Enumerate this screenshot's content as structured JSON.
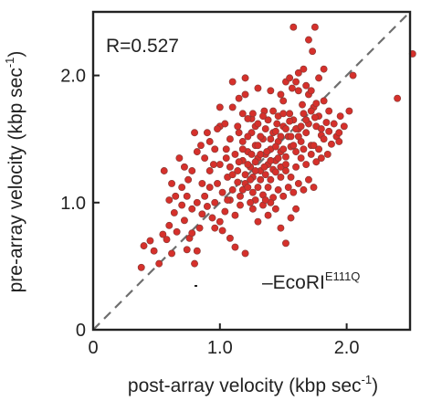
{
  "chart_data": {
    "type": "scatter",
    "xlabel": "post-array velocity (kbp sec",
    "xlabel_sup": "-1",
    "xlabel_tail": ")",
    "ylabel": "pre-array velocity (kbp sec",
    "ylabel_sup": "-1",
    "ylabel_tail": ")",
    "xlim": [
      0,
      2.5
    ],
    "ylim": [
      0,
      2.5
    ],
    "x_ticks": [
      {
        "value": 0,
        "label": "0"
      },
      {
        "value": 1.0,
        "label": "1.0"
      },
      {
        "value": 2.0,
        "label": "2.0"
      }
    ],
    "y_ticks": [
      {
        "value": 0,
        "label": "0"
      },
      {
        "value": 1.0,
        "label": "1.0"
      },
      {
        "value": 2.0,
        "label": "2.0"
      }
    ],
    "annotation_r": "R=0.527",
    "legend_text": "–EcoRI",
    "legend_sup": "E111Q",
    "diagonal_line": {
      "from": [
        0,
        0
      ],
      "to": [
        2.5,
        2.5
      ],
      "style": "dashed"
    },
    "colors": {
      "point_fill": "#d6302b",
      "point_stroke": "#8a3a36",
      "axis": "#222222",
      "diagonal": "#6e6e6e"
    },
    "points": [
      [
        0.38,
        0.49
      ],
      [
        0.4,
        0.66
      ],
      [
        0.45,
        0.7
      ],
      [
        0.48,
        0.62
      ],
      [
        0.52,
        0.52
      ],
      [
        0.55,
        0.75
      ],
      [
        0.58,
        0.71
      ],
      [
        0.6,
        0.82
      ],
      [
        0.62,
        0.6
      ],
      [
        0.64,
        0.92
      ],
      [
        0.66,
        0.77
      ],
      [
        0.7,
        0.98
      ],
      [
        0.72,
        0.86
      ],
      [
        0.74,
        0.63
      ],
      [
        0.76,
        0.72
      ],
      [
        0.78,
        0.76
      ],
      [
        0.8,
        0.52
      ],
      [
        0.82,
        0.62
      ],
      [
        0.84,
        0.8
      ],
      [
        0.86,
        0.91
      ],
      [
        0.88,
        1.05
      ],
      [
        0.9,
        0.97
      ],
      [
        0.92,
        1.12
      ],
      [
        0.94,
        0.88
      ],
      [
        0.96,
        1.0
      ],
      [
        0.98,
        1.15
      ],
      [
        1.0,
        0.85
      ],
      [
        1.02,
        1.08
      ],
      [
        1.04,
        0.93
      ],
      [
        1.06,
        1.2
      ],
      [
        1.08,
        1.02
      ],
      [
        1.1,
        1.1
      ],
      [
        1.12,
        0.9
      ],
      [
        1.14,
        1.25
      ],
      [
        1.16,
        1.05
      ],
      [
        1.18,
        1.33
      ],
      [
        1.2,
        1.15
      ],
      [
        1.22,
        1.4
      ],
      [
        1.24,
        1.28
      ],
      [
        1.26,
        1.2
      ],
      [
        1.28,
        1.45
      ],
      [
        1.3,
        1.35
      ],
      [
        1.32,
        1.25
      ],
      [
        1.34,
        1.5
      ],
      [
        1.36,
        1.38
      ],
      [
        1.38,
        1.3
      ],
      [
        1.4,
        1.42
      ],
      [
        1.42,
        1.55
      ],
      [
        1.44,
        1.33
      ],
      [
        1.46,
        1.48
      ],
      [
        1.48,
        1.4
      ],
      [
        1.5,
        1.6
      ],
      [
        1.52,
        1.36
      ],
      [
        1.54,
        1.52
      ],
      [
        1.56,
        1.44
      ],
      [
        1.58,
        1.65
      ],
      [
        1.6,
        1.4
      ],
      [
        1.62,
        1.58
      ],
      [
        1.64,
        1.48
      ],
      [
        1.66,
        1.7
      ],
      [
        1.68,
        1.55
      ],
      [
        1.7,
        1.62
      ],
      [
        1.72,
        1.45
      ],
      [
        1.74,
        1.75
      ],
      [
        1.76,
        1.6
      ],
      [
        1.78,
        1.68
      ],
      [
        1.8,
        1.53
      ],
      [
        1.82,
        1.8
      ],
      [
        1.84,
        1.63
      ],
      [
        1.86,
        1.72
      ],
      [
        0.85,
        1.45
      ],
      [
        0.9,
        1.55
      ],
      [
        0.95,
        1.3
      ],
      [
        1.0,
        1.6
      ],
      [
        1.05,
        1.42
      ],
      [
        1.1,
        1.75
      ],
      [
        1.15,
        1.55
      ],
      [
        1.2,
        1.85
      ],
      [
        1.25,
        1.66
      ],
      [
        1.3,
        1.9
      ],
      [
        1.35,
        1.72
      ],
      [
        1.4,
        1.88
      ],
      [
        1.45,
        1.62
      ],
      [
        1.5,
        1.8
      ],
      [
        1.55,
        1.7
      ],
      [
        1.6,
        1.95
      ],
      [
        1.65,
        1.77
      ],
      [
        1.7,
        1.85
      ],
      [
        1.75,
        1.67
      ],
      [
        1.8,
        1.58
      ],
      [
        1.1,
        1.95
      ],
      [
        1.15,
        1.82
      ],
      [
        1.2,
        1.98
      ],
      [
        1.0,
        1.75
      ],
      [
        0.98,
        1.58
      ],
      [
        1.62,
        2.02
      ],
      [
        1.68,
        1.92
      ],
      [
        1.72,
        1.88
      ],
      [
        1.78,
        1.98
      ],
      [
        1.82,
        2.05
      ],
      [
        1.58,
        2.38
      ],
      [
        1.75,
        2.38
      ],
      [
        1.7,
        2.28
      ],
      [
        1.73,
        2.19
      ],
      [
        1.66,
        2.05
      ],
      [
        2.4,
        1.82
      ],
      [
        2.52,
        2.17
      ],
      [
        2.02,
        1.72
      ],
      [
        2.05,
        2.0
      ],
      [
        1.95,
        1.68
      ],
      [
        1.92,
        1.52
      ],
      [
        1.94,
        1.48
      ],
      [
        1.88,
        1.46
      ],
      [
        1.85,
        1.38
      ],
      [
        1.8,
        1.35
      ],
      [
        1.52,
        1.95
      ],
      [
        1.48,
        1.85
      ],
      [
        1.55,
        1.98
      ],
      [
        1.57,
        1.9
      ],
      [
        1.62,
        1.88
      ],
      [
        1.0,
        1.3
      ],
      [
        1.05,
        1.35
      ],
      [
        1.08,
        1.28
      ],
      [
        1.12,
        1.38
      ],
      [
        1.15,
        1.32
      ],
      [
        1.18,
        1.42
      ],
      [
        1.22,
        1.3
      ],
      [
        1.25,
        1.38
      ],
      [
        1.28,
        1.32
      ],
      [
        1.3,
        1.45
      ],
      [
        1.32,
        1.38
      ],
      [
        1.35,
        1.28
      ],
      [
        1.37,
        1.4
      ],
      [
        1.4,
        1.33
      ],
      [
        1.42,
        1.26
      ],
      [
        1.44,
        1.44
      ],
      [
        1.46,
        1.35
      ],
      [
        1.48,
        1.28
      ],
      [
        1.5,
        1.42
      ],
      [
        1.52,
        1.3
      ],
      [
        1.2,
        1.22
      ],
      [
        1.24,
        1.18
      ],
      [
        1.28,
        1.25
      ],
      [
        1.32,
        1.18
      ],
      [
        1.36,
        1.22
      ],
      [
        1.4,
        1.18
      ],
      [
        1.44,
        1.24
      ],
      [
        1.48,
        1.2
      ],
      [
        1.52,
        1.25
      ],
      [
        1.56,
        1.2
      ],
      [
        1.1,
        1.22
      ],
      [
        1.14,
        1.16
      ],
      [
        1.18,
        1.1
      ],
      [
        1.22,
        1.12
      ],
      [
        1.26,
        1.08
      ],
      [
        1.3,
        1.12
      ],
      [
        1.34,
        1.06
      ],
      [
        1.38,
        1.12
      ],
      [
        1.42,
        1.04
      ],
      [
        1.46,
        1.1
      ],
      [
        1.5,
        1.05
      ],
      [
        1.54,
        1.12
      ],
      [
        1.58,
        1.08
      ],
      [
        1.62,
        1.15
      ],
      [
        1.66,
        1.1
      ],
      [
        1.7,
        1.18
      ],
      [
        1.74,
        1.12
      ],
      [
        1.6,
        1.28
      ],
      [
        1.64,
        1.35
      ],
      [
        1.68,
        1.3
      ],
      [
        1.72,
        1.38
      ],
      [
        1.76,
        1.32
      ],
      [
        1.58,
        1.45
      ],
      [
        1.62,
        1.52
      ],
      [
        1.66,
        1.42
      ],
      [
        0.8,
        1.55
      ],
      [
        0.82,
        1.4
      ],
      [
        0.78,
        1.25
      ],
      [
        0.75,
        1.18
      ],
      [
        0.72,
        1.28
      ],
      [
        0.68,
        1.35
      ],
      [
        0.65,
        1.05
      ],
      [
        0.6,
        1.02
      ],
      [
        0.56,
        1.25
      ],
      [
        0.62,
        1.15
      ],
      [
        0.7,
        1.12
      ],
      [
        0.74,
        1.05
      ],
      [
        0.78,
        0.95
      ],
      [
        0.82,
        1.0
      ],
      [
        0.86,
        1.15
      ],
      [
        0.96,
        0.8
      ],
      [
        1.02,
        0.78
      ],
      [
        1.08,
        0.72
      ],
      [
        1.12,
        0.65
      ],
      [
        1.2,
        0.6
      ],
      [
        1.26,
        0.95
      ],
      [
        1.3,
        0.85
      ],
      [
        1.34,
        0.98
      ],
      [
        1.38,
        0.9
      ],
      [
        1.44,
        0.95
      ],
      [
        1.48,
        0.8
      ],
      [
        1.52,
        0.68
      ],
      [
        1.56,
        0.88
      ],
      [
        1.6,
        0.95
      ],
      [
        1.4,
        1.0
      ],
      [
        1.36,
        1.02
      ],
      [
        1.16,
        0.98
      ],
      [
        1.06,
        1.02
      ],
      [
        0.92,
        1.25
      ],
      [
        0.88,
        1.35
      ],
      [
        1.25,
        1.55
      ],
      [
        1.28,
        1.6
      ],
      [
        1.32,
        1.52
      ],
      [
        1.36,
        1.58
      ],
      [
        1.4,
        1.5
      ],
      [
        1.44,
        1.56
      ],
      [
        1.48,
        1.52
      ],
      [
        1.52,
        1.58
      ],
      [
        1.56,
        1.52
      ],
      [
        1.6,
        1.58
      ],
      [
        1.18,
        1.48
      ],
      [
        1.22,
        1.52
      ],
      [
        1.14,
        1.6
      ],
      [
        1.08,
        1.5
      ],
      [
        1.04,
        1.62
      ],
      [
        0.96,
        1.42
      ],
      [
        0.92,
        1.48
      ],
      [
        1.74,
        1.45
      ],
      [
        1.78,
        1.42
      ],
      [
        1.82,
        1.5
      ],
      [
        1.86,
        1.56
      ],
      [
        1.9,
        1.62
      ],
      [
        1.94,
        1.55
      ],
      [
        1.98,
        1.6
      ],
      [
        1.68,
        1.65
      ],
      [
        1.72,
        1.72
      ],
      [
        1.76,
        1.78
      ],
      [
        1.64,
        1.6
      ],
      [
        1.46,
        1.68
      ],
      [
        1.42,
        1.72
      ],
      [
        1.38,
        1.65
      ],
      [
        1.34,
        1.68
      ],
      [
        1.3,
        1.62
      ],
      [
        1.26,
        1.7
      ],
      [
        1.22,
        1.66
      ],
      [
        1.18,
        1.7
      ],
      [
        1.55,
        1.64
      ],
      [
        1.5,
        1.7
      ],
      [
        1.28,
        1.02
      ],
      [
        1.24,
        1.0
      ]
    ]
  }
}
